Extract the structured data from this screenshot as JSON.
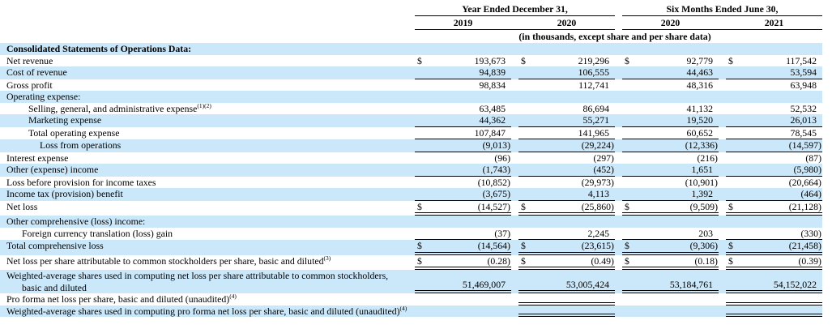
{
  "dollar_sign": "$",
  "colors": {
    "row_highlight": "#cbe8fb"
  },
  "header": {
    "groups": [
      {
        "title": "Year Ended December 31,",
        "cols": [
          "2019",
          "2020"
        ]
      },
      {
        "title": "Six Months Ended June 30,",
        "cols": [
          "2020",
          "2021"
        ]
      }
    ],
    "units_note": "(in thousands, except share and per share data)"
  },
  "rows": [
    {
      "label": "Consolidated Statements of Operations Data:",
      "values": [
        "",
        "",
        "",
        ""
      ]
    },
    {
      "label": "Net revenue",
      "values": [
        "193,673",
        "219,296",
        "92,779",
        "117,542"
      ]
    },
    {
      "label": "Cost of revenue",
      "values": [
        "94,839",
        "106,555",
        "44,463",
        "53,594"
      ]
    },
    {
      "label": "Gross profit",
      "values": [
        "98,834",
        "112,741",
        "48,316",
        "63,948"
      ]
    },
    {
      "label": "Operating expense:",
      "values": [
        "",
        "",
        "",
        ""
      ]
    },
    {
      "label": "Selling, general, and administrative expense",
      "sup": "(1)(2)",
      "values": [
        "63,485",
        "86,694",
        "41,132",
        "52,532"
      ]
    },
    {
      "label": "Marketing expense",
      "values": [
        "44,362",
        "55,271",
        "19,520",
        "26,013"
      ]
    },
    {
      "label": "Total operating expense",
      "values": [
        "107,847",
        "141,965",
        "60,652",
        "78,545"
      ]
    },
    {
      "label": "Loss from operations",
      "values": [
        "(9,013)",
        "(29,224)",
        "(12,336)",
        "(14,597)"
      ]
    },
    {
      "label": "Interest expense",
      "values": [
        "(96)",
        "(297)",
        "(216)",
        "(87)"
      ]
    },
    {
      "label": "Other (expense) income",
      "values": [
        "(1,743)",
        "(452)",
        "1,651",
        "(5,980)"
      ]
    },
    {
      "label": "Loss before provision for income taxes",
      "values": [
        "(10,852)",
        "(29,973)",
        "(10,901)",
        "(20,664)"
      ]
    },
    {
      "label": "Income tax (provision) benefit",
      "values": [
        "(3,675)",
        "4,113",
        "1,392",
        "(464)"
      ]
    },
    {
      "label": "Net loss",
      "values": [
        "(14,527)",
        "(25,860)",
        "(9,509)",
        "(21,128)"
      ]
    },
    {
      "label": "Other comprehensive (loss) income:",
      "values": [
        "",
        "",
        "",
        ""
      ]
    },
    {
      "label": "Foreign currency translation (loss) gain",
      "values": [
        "(37)",
        "2,245",
        "203",
        "(330)"
      ]
    },
    {
      "label": "Total comprehensive loss",
      "values": [
        "(14,564)",
        "(23,615)",
        "(9,306)",
        "(21,458)"
      ]
    },
    {
      "label": "Net loss per share attributable to common stockholders per share, basic and diluted",
      "sup": "(3)",
      "values": [
        "(0.28)",
        "(0.49)",
        "(0.18)",
        "(0.39)"
      ]
    },
    {
      "label": "Weighted-average shares used in computing net loss per share attributable to common stockholders, basic and diluted",
      "values": [
        "51,469,007",
        "53,005,424",
        "53,184,761",
        "54,152,022"
      ]
    },
    {
      "label": "Pro forma net loss per share, basic and diluted (unaudited)",
      "sup": "(4)",
      "values": [
        "",
        "",
        "",
        ""
      ]
    },
    {
      "label": "Weighted-average shares used in computing pro forma net loss per share, basic and diluted (unaudited)",
      "sup": "(4)",
      "values": [
        "",
        "",
        "",
        ""
      ]
    }
  ]
}
